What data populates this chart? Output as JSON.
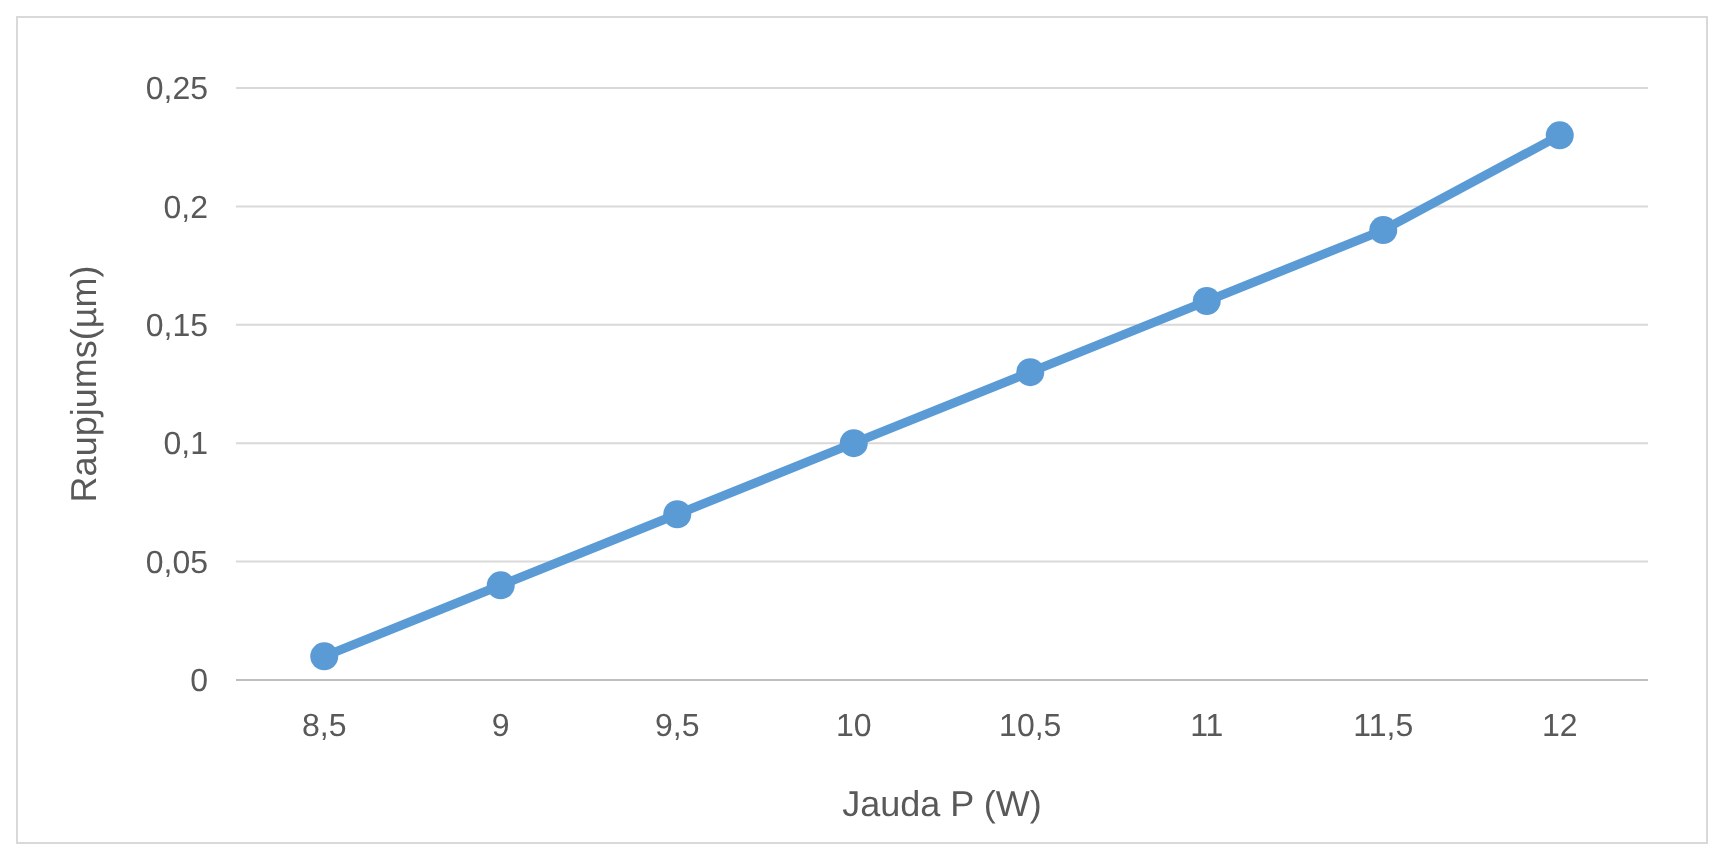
{
  "chart_data": {
    "type": "line",
    "xlabel": "Jauda P (W)",
    "ylabel": "Raupjums(µm)",
    "categories": [
      "8,5",
      "9",
      "9,5",
      "10",
      "10,5",
      "11",
      "11,5",
      "12"
    ],
    "series": [
      {
        "color": "#5b9bd5",
        "values": [
          0.01,
          0.04,
          0.07,
          0.1,
          0.13,
          0.16,
          0.19,
          0.23
        ]
      }
    ],
    "ylim": [
      0,
      0.25
    ],
    "yticks": [
      0,
      {
        "value": 0.05,
        "label": "0,05"
      },
      {
        "value": 0.1,
        "label": "0,1"
      },
      {
        "value": 0.15,
        "label": "0,15"
      },
      {
        "value": 0.2,
        "label": "0,2"
      },
      {
        "value": 0.25,
        "label": "0,25"
      }
    ],
    "grid": "y",
    "marker": "circle",
    "line_style": "solid"
  }
}
